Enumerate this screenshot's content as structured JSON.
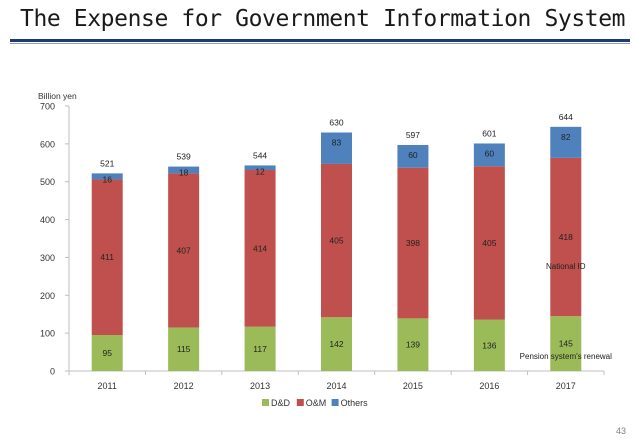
{
  "slide": {
    "title": "The Expense for Government Information System",
    "page_number": "43"
  },
  "colors": {
    "D&D": "#9bbb59",
    "O&M": "#c0504d",
    "Others": "#4f81bd",
    "title_rule": "#1f3b73"
  },
  "chart_data": {
    "type": "bar",
    "stacked": true,
    "categories": [
      "2011",
      "2012",
      "2013",
      "2014",
      "2015",
      "2016",
      "2017"
    ],
    "series": [
      {
        "name": "D&D",
        "values": [
          95,
          115,
          117,
          142,
          139,
          136,
          145
        ]
      },
      {
        "name": "O&M",
        "values": [
          411,
          407,
          414,
          405,
          398,
          405,
          418
        ]
      },
      {
        "name": "Others",
        "values": [
          16,
          18,
          12,
          83,
          60,
          60,
          82
        ]
      }
    ],
    "totals": [
      521,
      539,
      544,
      630,
      597,
      601,
      644
    ],
    "ylabel": "Billion yen",
    "ylim": [
      0,
      700
    ],
    "yticks": [
      0,
      100,
      200,
      300,
      400,
      500,
      600,
      700
    ],
    "grid": false,
    "legend": "bottom",
    "annotations": [
      {
        "text": "National ID",
        "category": "2017",
        "value": 270
      },
      {
        "text": "Pension system's renewal",
        "category": "2017",
        "value": 32
      }
    ]
  }
}
